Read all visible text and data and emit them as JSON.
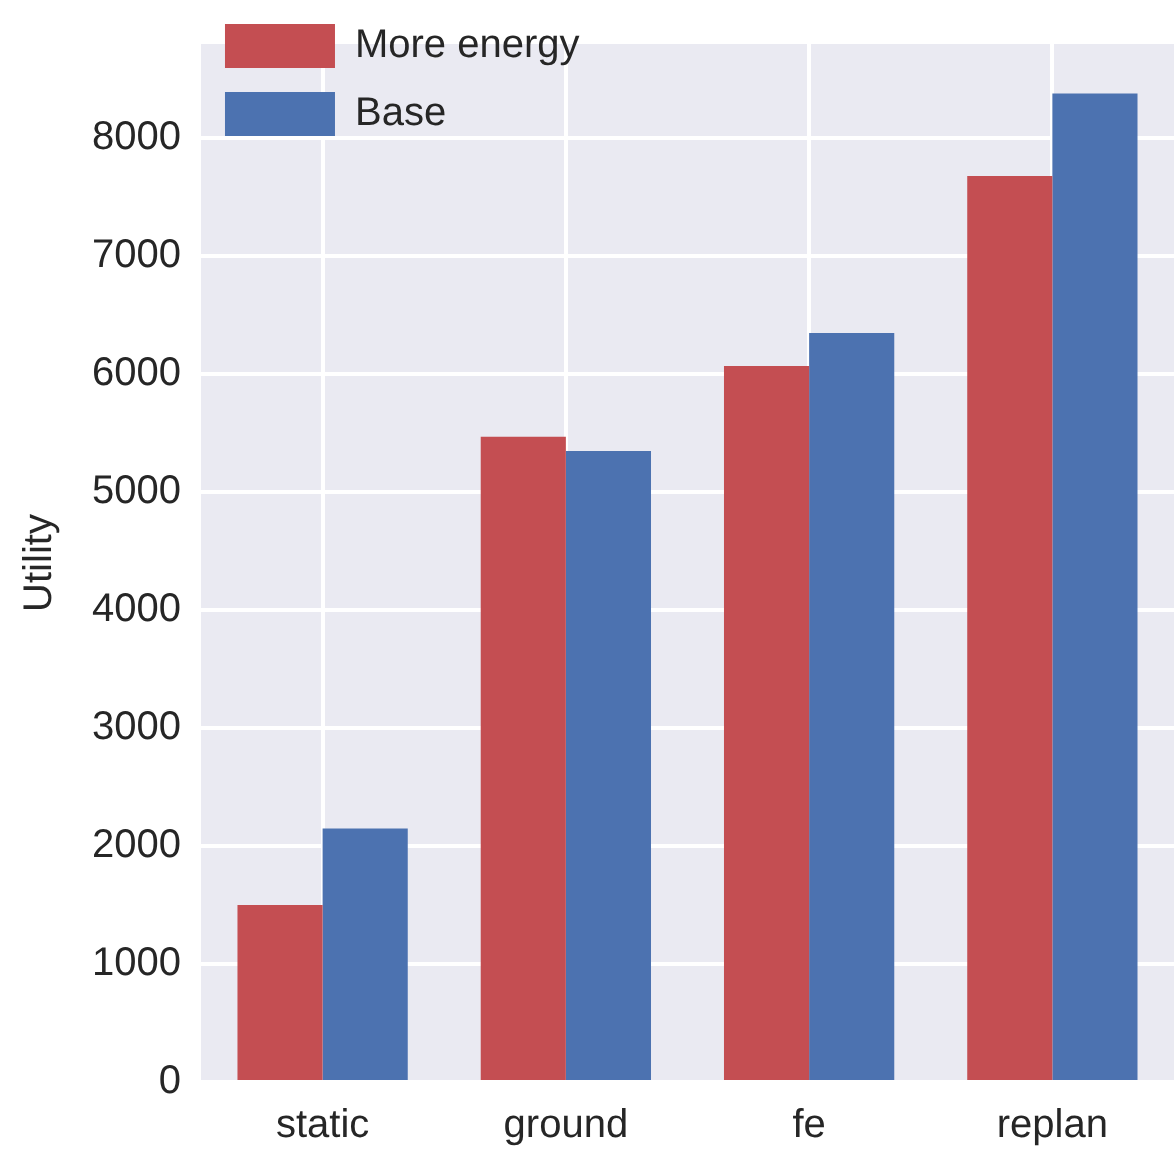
{
  "chart_data": {
    "type": "bar",
    "ylabel": "Utility",
    "categories": [
      "static",
      "ground",
      "fe",
      "replan"
    ],
    "series": [
      {
        "name": "More energy",
        "color": "#c44e52",
        "values": [
          1500,
          5470,
          6070,
          7680
        ]
      },
      {
        "name": "Base",
        "color": "#4c72b0",
        "values": [
          2150,
          5350,
          6350,
          8380
        ]
      }
    ],
    "ylim": [
      0,
      8800
    ],
    "yticks": [
      0,
      1000,
      2000,
      3000,
      4000,
      5000,
      6000,
      7000,
      8000
    ],
    "grid": true,
    "legend": "top left"
  }
}
